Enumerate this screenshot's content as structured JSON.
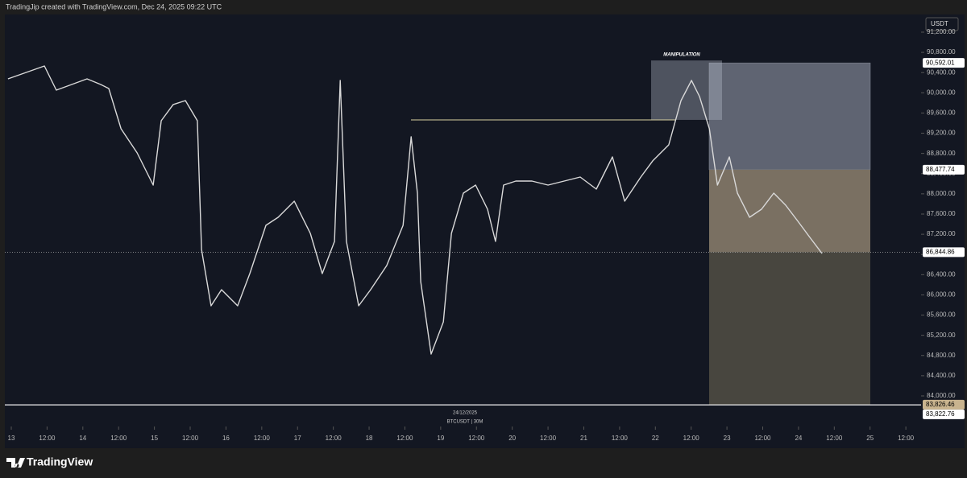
{
  "header": {
    "text": "TradingJip created with TradingView.com, Dec 24, 2025 09:22 UTC"
  },
  "footer": {
    "logo": "TradingView"
  },
  "chart_data": {
    "type": "line",
    "currency": "USDT",
    "date_label": "24/12/2025",
    "symbol_label": "BTCUSDT | 30M",
    "annotation": "MANIPULATION",
    "color": "#d9d9d9",
    "x": [
      -1.1,
      11.1,
      15.1,
      25.4,
      30.0,
      32.7,
      36.8,
      42.2,
      47.6,
      50.3,
      54.3,
      58.4,
      62.4,
      63.8,
      67.0,
      70.5,
      75.9,
      80.0,
      85.4,
      89.5,
      94.9,
      100.3,
      104.3,
      108.4,
      110.3,
      112.4,
      116.5,
      120.5,
      125.9,
      131.4,
      134.1,
      136.2,
      137.3,
      140.8,
      144.9,
      147.6,
      151.6,
      155.7,
      159.7,
      162.4,
      165.1,
      169.2,
      174.6,
      180.0,
      185.4,
      190.8,
      196.2,
      201.6,
      205.7,
      211.1,
      215.1,
      220.5,
      224.6,
      228.1,
      230.8,
      234.1,
      236.8,
      240.8,
      243.5,
      247.6,
      251.6,
      255.7,
      259.7,
      263.8,
      267.8,
      271.9
    ],
    "values": [
      90276,
      90531,
      90053,
      90276,
      90165,
      90085,
      89289,
      88811,
      88174,
      89448,
      89767,
      89846,
      89448,
      86899,
      85784,
      86103,
      85784,
      86421,
      87377,
      87536,
      87855,
      87218,
      86421,
      87059,
      90245,
      87059,
      85784,
      86103,
      86581,
      87377,
      89129,
      88014,
      86262,
      84828,
      85466,
      87218,
      88014,
      88174,
      87696,
      87059,
      88174,
      88253,
      88253,
      88174,
      88253,
      88333,
      88094,
      88731,
      87855,
      88333,
      88652,
      88970,
      89846,
      90245,
      89926,
      89289,
      88174,
      88731,
      88014,
      87536,
      87696,
      88014,
      87775,
      87457,
      87138,
      86820
    ],
    "xlim": [
      -2.16,
      305.1
    ],
    "xticks": [
      {
        "value": 0,
        "label": "13"
      },
      {
        "value": 12,
        "label": "12:00"
      },
      {
        "value": 24,
        "label": "14"
      },
      {
        "value": 36,
        "label": "12:00"
      },
      {
        "value": 48,
        "label": "15"
      },
      {
        "value": 60,
        "label": "12:00"
      },
      {
        "value": 72,
        "label": "16"
      },
      {
        "value": 84,
        "label": "12:00"
      },
      {
        "value": 96,
        "label": "17"
      },
      {
        "value": 108,
        "label": "12:00"
      },
      {
        "value": 120,
        "label": "18"
      },
      {
        "value": 132,
        "label": "12:00"
      },
      {
        "value": 144,
        "label": "19"
      },
      {
        "value": 156,
        "label": "12:00"
      },
      {
        "value": 168,
        "label": "20"
      },
      {
        "value": 180,
        "label": "12:00"
      },
      {
        "value": 192,
        "label": "21"
      },
      {
        "value": 204,
        "label": "12:00"
      },
      {
        "value": 216,
        "label": "22"
      },
      {
        "value": 228,
        "label": "12:00"
      },
      {
        "value": 240,
        "label": "23"
      },
      {
        "value": 252,
        "label": "12:00"
      },
      {
        "value": 264,
        "label": "24"
      },
      {
        "value": 276,
        "label": "12:00"
      },
      {
        "value": 288,
        "label": "25"
      },
      {
        "value": 300,
        "label": "12:00"
      }
    ],
    "ylim": [
      83793,
      91550
    ],
    "yticks": [
      {
        "value": 84000,
        "label": "84,000.00"
      },
      {
        "value": 84400,
        "label": "84,400.00"
      },
      {
        "value": 84800,
        "label": "84,800.00"
      },
      {
        "value": 85200,
        "label": "85,200.00"
      },
      {
        "value": 85600,
        "label": "85,600.00"
      },
      {
        "value": 86000,
        "label": "86,000.00"
      },
      {
        "value": 86400,
        "label": "86,400.00"
      },
      {
        "value": 86800,
        "label": "86,800.00"
      },
      {
        "value": 87200,
        "label": "87,200.00"
      },
      {
        "value": 87600,
        "label": "87,600.00"
      },
      {
        "value": 88000,
        "label": "88,000.00"
      },
      {
        "value": 88400,
        "label": "88,400.00"
      },
      {
        "value": 88800,
        "label": "88,800.00"
      },
      {
        "value": 89200,
        "label": "89,200.00"
      },
      {
        "value": 89600,
        "label": "89,600.00"
      },
      {
        "value": 90000,
        "label": "90,000.00"
      },
      {
        "value": 90400,
        "label": "90,400.00"
      },
      {
        "value": 90800,
        "label": "90,800.00"
      },
      {
        "value": 91200,
        "label": "91,200.00"
      }
    ],
    "resistance_line": 89464,
    "stop_level": {
      "value": 90592.01,
      "label": "90,592.01"
    },
    "mid_level": {
      "value": 88477.74,
      "label": "88,477.74"
    },
    "last_price": {
      "value": 86844.86,
      "label": "86,844.86"
    },
    "target_level": {
      "value": 83826.46,
      "label": "83,826.46"
    },
    "base_line": {
      "value": 83822.76,
      "label": "83,822.76"
    }
  }
}
